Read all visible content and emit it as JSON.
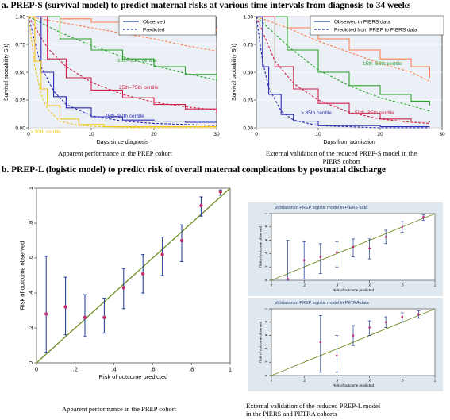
{
  "headings": {
    "a": "a. PREP-S (survival model) to predict maternal risks at various time intervals from diagnosis to 34 weeks",
    "b": "b. PREP-L (logistic model) to predict risk of overall maternal complications by postnatal discharge"
  },
  "captions": {
    "a1": "Apparent performance in the PREP cohort",
    "a2_line1": "External validation of the reduced PREP-S model in the",
    "a2_line2": "PIERS cohort",
    "b1": "Apparent performance in the PREP cohort",
    "b2_line1": "External validation of the reduced PREP-L model",
    "b2_line2": "in the PIERS and PETRA cohorts"
  },
  "colors": {
    "orange": "#ff7f50",
    "green": "#2ca02c",
    "crimson": "#d0204a",
    "blue": "#2c2cb0",
    "yellow": "#f5c518",
    "navy": "#1f3a93",
    "olive": "#6b8e23",
    "point": "#c0306a"
  },
  "chart_data": [
    {
      "type": "line",
      "xlabel": "Days since diagnosis",
      "ylabel": "Survival probability S(t)",
      "xlim": [
        0,
        30
      ],
      "ylim": [
        0,
        1
      ],
      "xticks": [
        0,
        10,
        20,
        30
      ],
      "yticks": [
        0.0,
        0.25,
        0.5,
        0.75,
        1.0
      ],
      "legend": {
        "position": "top-right",
        "entries": [
          "Observed",
          "Predicted"
        ]
      },
      "series": [
        {
          "label": "≤ 10th centile",
          "color": "orange",
          "x": [
            0,
            5,
            10,
            15,
            20,
            25,
            30
          ],
          "observed": [
            1,
            0.98,
            0.95,
            0.93,
            0.91,
            0.89,
            0.87
          ],
          "predicted": [
            1,
            0.95,
            0.9,
            0.85,
            0.8,
            0.74,
            0.69
          ]
        },
        {
          "label": "10th–25th centile",
          "color": "green",
          "x": [
            0,
            5,
            10,
            15,
            20,
            25,
            30
          ],
          "observed": [
            1,
            0.8,
            0.7,
            0.62,
            0.55,
            0.48,
            0.43
          ],
          "predicted": [
            1,
            0.86,
            0.74,
            0.64,
            0.56,
            0.49,
            0.43
          ]
        },
        {
          "label": "25th–75th centile",
          "color": "crimson",
          "x": [
            0,
            3,
            6,
            10,
            15,
            20,
            25,
            30
          ],
          "observed": [
            1,
            0.62,
            0.45,
            0.34,
            0.27,
            0.21,
            0.17,
            0.13
          ],
          "predicted": [
            1,
            0.72,
            0.55,
            0.41,
            0.3,
            0.23,
            0.19,
            0.16
          ]
        },
        {
          "label": "75th–90th centile",
          "color": "blue",
          "x": [
            0,
            2,
            4,
            6,
            10,
            15,
            20,
            25,
            30
          ],
          "observed": [
            1,
            0.5,
            0.28,
            0.18,
            0.1,
            0.07,
            0.06,
            0.05,
            0.05
          ],
          "predicted": [
            1,
            0.55,
            0.33,
            0.21,
            0.11,
            0.06,
            0.04,
            0.03,
            0.02
          ]
        },
        {
          "label": "> 90th centile",
          "color": "yellow",
          "x": [
            0,
            1,
            2,
            3,
            5,
            8,
            12,
            20,
            30
          ],
          "observed": [
            1,
            0.6,
            0.35,
            0.2,
            0.08,
            0.03,
            0.01,
            0.01,
            0.01
          ],
          "predicted": [
            1,
            0.55,
            0.3,
            0.17,
            0.06,
            0.02,
            0.01,
            0.0,
            0.0
          ]
        }
      ]
    },
    {
      "type": "line",
      "xlabel": "Days from admission",
      "ylabel": "Survival probability S(t)",
      "xlim": [
        0,
        30
      ],
      "ylim": [
        0,
        1
      ],
      "xticks": [
        0,
        10,
        20,
        30
      ],
      "yticks": [
        0.0,
        0.25,
        0.5,
        0.75,
        1.0
      ],
      "legend": {
        "position": "top-right",
        "entries": [
          "Observed in PIERS data",
          "Predicted from PREP to PIERS data"
        ]
      },
      "series": [
        {
          "label": "≤ 16th centile",
          "color": "orange",
          "x": [
            0,
            5,
            10,
            15,
            20,
            25,
            28
          ],
          "observed": [
            1,
            0.9,
            0.8,
            0.7,
            0.62,
            0.55,
            0.45
          ],
          "predicted": [
            1,
            0.9,
            0.78,
            0.68,
            0.58,
            0.5,
            0.42
          ]
        },
        {
          "label": "15th–50th centile",
          "color": "green",
          "x": [
            0,
            5,
            10,
            15,
            20,
            25,
            28
          ],
          "observed": [
            1,
            0.7,
            0.5,
            0.38,
            0.3,
            0.24,
            0.2
          ],
          "predicted": [
            1,
            0.74,
            0.52,
            0.38,
            0.27,
            0.2,
            0.15
          ]
        },
        {
          "label": "50th–85th centile",
          "color": "crimson",
          "x": [
            0,
            3,
            6,
            10,
            15,
            20,
            25,
            28
          ],
          "observed": [
            1,
            0.55,
            0.35,
            0.22,
            0.13,
            0.08,
            0.06,
            0.05
          ],
          "predicted": [
            1,
            0.6,
            0.4,
            0.25,
            0.14,
            0.08,
            0.05,
            0.04
          ]
        },
        {
          "label": "> 85th centile",
          "color": "blue",
          "x": [
            0,
            1,
            2,
            4,
            6,
            10,
            20,
            28
          ],
          "observed": [
            1,
            0.55,
            0.3,
            0.12,
            0.06,
            0.02,
            0.01,
            0.01
          ],
          "predicted": [
            1,
            0.6,
            0.36,
            0.15,
            0.07,
            0.02,
            0.0,
            0.0
          ]
        }
      ]
    },
    {
      "type": "scatter",
      "xlabel": "Risk of outcome predicted",
      "ylabel": "Risk of outcome observed",
      "xlim": [
        0,
        1
      ],
      "ylim": [
        0,
        1
      ],
      "xticks": [
        0,
        0.2,
        0.4,
        0.6,
        0.8,
        1
      ],
      "yticks": [
        0,
        0.2,
        0.4,
        0.6,
        0.8,
        1
      ],
      "xticklabels": [
        "0",
        ".2",
        ".4",
        ".6",
        ".8",
        "1"
      ],
      "yticklabels": [
        "0",
        ".2",
        ".4",
        ".6",
        ".8",
        "1"
      ],
      "points": [
        {
          "x": 0.05,
          "y": 0.28,
          "lo": 0.06,
          "hi": 0.61
        },
        {
          "x": 0.15,
          "y": 0.32,
          "lo": 0.16,
          "hi": 0.49
        },
        {
          "x": 0.25,
          "y": 0.26,
          "lo": 0.15,
          "hi": 0.39
        },
        {
          "x": 0.35,
          "y": 0.26,
          "lo": 0.17,
          "hi": 0.37
        },
        {
          "x": 0.45,
          "y": 0.43,
          "lo": 0.31,
          "hi": 0.54
        },
        {
          "x": 0.55,
          "y": 0.51,
          "lo": 0.4,
          "hi": 0.62
        },
        {
          "x": 0.65,
          "y": 0.62,
          "lo": 0.5,
          "hi": 0.72
        },
        {
          "x": 0.75,
          "y": 0.7,
          "lo": 0.58,
          "hi": 0.79
        },
        {
          "x": 0.85,
          "y": 0.9,
          "lo": 0.84,
          "hi": 0.95
        },
        {
          "x": 0.95,
          "y": 0.98,
          "lo": 0.96,
          "hi": 0.99
        }
      ]
    },
    {
      "type": "scatter",
      "title": "Validation of PREP logistic model in PIERS data",
      "xlabel": "Risk of outcome predicted",
      "ylabel": "Risk of outcome observed",
      "xlim": [
        0,
        1
      ],
      "ylim": [
        0,
        1
      ],
      "xticks": [
        0,
        0.2,
        0.4,
        0.6,
        0.8,
        1
      ],
      "yticks": [
        0,
        0.2,
        0.4,
        0.6,
        0.8,
        1
      ],
      "xticklabels": [
        "0",
        ".2",
        ".4",
        ".6",
        ".8",
        "1"
      ],
      "yticklabels": [
        "0",
        ".2",
        ".4",
        ".6",
        ".8",
        "1"
      ],
      "points": [
        {
          "x": 0.1,
          "y": 0.02,
          "lo": 0.0,
          "hi": 0.6
        },
        {
          "x": 0.2,
          "y": 0.3,
          "lo": 0.02,
          "hi": 0.58
        },
        {
          "x": 0.3,
          "y": 0.35,
          "lo": 0.1,
          "hi": 0.55
        },
        {
          "x": 0.4,
          "y": 0.42,
          "lo": 0.2,
          "hi": 0.58
        },
        {
          "x": 0.5,
          "y": 0.5,
          "lo": 0.35,
          "hi": 0.62
        },
        {
          "x": 0.6,
          "y": 0.48,
          "lo": 0.32,
          "hi": 0.62
        },
        {
          "x": 0.7,
          "y": 0.65,
          "lo": 0.55,
          "hi": 0.75
        },
        {
          "x": 0.8,
          "y": 0.8,
          "lo": 0.72,
          "hi": 0.88
        },
        {
          "x": 0.93,
          "y": 0.95,
          "lo": 0.9,
          "hi": 0.98
        }
      ]
    },
    {
      "type": "scatter",
      "title": "Validation of PREP logistic model in PETRA data",
      "xlabel": "Risk of outcome predicted",
      "ylabel": "Risk of outcome observed",
      "xlim": [
        0,
        1
      ],
      "ylim": [
        0,
        1
      ],
      "xticks": [
        0,
        0.2,
        0.4,
        0.6,
        0.8,
        1
      ],
      "yticks": [
        0,
        0.2,
        0.4,
        0.6,
        0.8,
        1
      ],
      "xticklabels": [
        "0",
        ".2",
        ".4",
        ".6",
        ".8",
        "1"
      ],
      "yticklabels": [
        "0",
        ".2",
        ".4",
        ".6",
        ".8",
        "1"
      ],
      "points": [
        {
          "x": 0.3,
          "y": 0.5,
          "lo": 0.05,
          "hi": 0.9
        },
        {
          "x": 0.4,
          "y": 0.3,
          "lo": 0.05,
          "hi": 0.6
        },
        {
          "x": 0.5,
          "y": 0.6,
          "lo": 0.45,
          "hi": 0.75
        },
        {
          "x": 0.6,
          "y": 0.72,
          "lo": 0.6,
          "hi": 0.82
        },
        {
          "x": 0.7,
          "y": 0.8,
          "lo": 0.72,
          "hi": 0.88
        },
        {
          "x": 0.8,
          "y": 0.88,
          "lo": 0.8,
          "hi": 0.94
        },
        {
          "x": 0.9,
          "y": 0.92,
          "lo": 0.86,
          "hi": 0.97
        }
      ]
    }
  ]
}
